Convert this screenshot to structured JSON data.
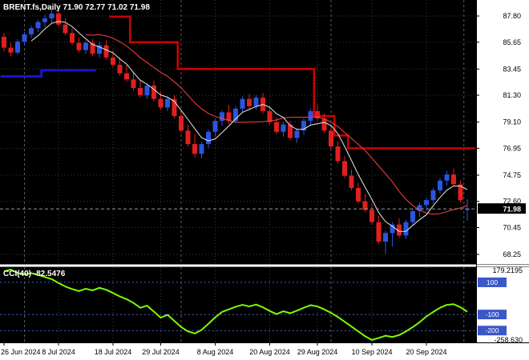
{
  "window": {
    "symbol_title": "BRENT.fs,Daily 71.90 72.77 71.02 71.98",
    "indicator_label": "CCI(40) -82.5476"
  },
  "chart_data": [
    {
      "type": "candlestick",
      "title": "BRENT.fs,Daily",
      "open": 71.9,
      "high": 72.77,
      "low": 71.02,
      "close": 71.98,
      "current_price": "71.98",
      "price_ticks": [
        "87.80",
        "85.65",
        "83.45",
        "81.30",
        "79.10",
        "76.95",
        "74.75",
        "72.60",
        "70.45",
        "68.25"
      ],
      "x_labels": [
        {
          "label": "26 Jun 2024",
          "idx": 0
        },
        {
          "label": "8 Jul 2024",
          "idx": 8
        },
        {
          "label": "18 Jul 2024",
          "idx": 16
        },
        {
          "label": "29 Jul 2024",
          "idx": 23
        },
        {
          "label": "8 Aug 2024",
          "idx": 31
        },
        {
          "label": "20 Aug 2024",
          "idx": 39
        },
        {
          "label": "29 Aug 2024",
          "idx": 46
        },
        {
          "label": "10 Sep 2024",
          "idx": 54
        },
        {
          "label": "20 Sep 2024",
          "idx": 62
        }
      ],
      "month_separators": [
        3,
        26,
        48,
        67.5
      ],
      "ma_fast_period": 5,
      "ma_slow_period": 13,
      "support_steps": [
        [
          -0.5,
          82.85
        ],
        [
          5.5,
          82.85
        ],
        [
          5.5,
          83.35
        ],
        [
          13.5,
          83.35
        ]
      ],
      "resistance_steps": [
        [
          15.5,
          87.75
        ],
        [
          18.5,
          87.75
        ],
        [
          18.5,
          85.65
        ],
        [
          25.5,
          85.65
        ],
        [
          25.5,
          83.45
        ],
        [
          45.5,
          83.45
        ],
        [
          45.5,
          79.6
        ],
        [
          48.5,
          79.6
        ],
        [
          48.5,
          78.0
        ],
        [
          50.5,
          78.0
        ],
        [
          50.5,
          76.95
        ],
        [
          69.2,
          76.95
        ]
      ],
      "candles": [
        [
          86.1,
          86.4,
          84.9,
          85.2
        ],
        [
          85.2,
          85.6,
          84.5,
          84.8
        ],
        [
          84.8,
          85.9,
          84.6,
          85.7
        ],
        [
          85.7,
          86.5,
          85.4,
          86.3
        ],
        [
          86.3,
          87.0,
          86.0,
          86.8
        ],
        [
          86.8,
          87.5,
          86.5,
          87.3
        ],
        [
          87.3,
          87.9,
          86.9,
          87.6
        ],
        [
          87.6,
          88.3,
          87.2,
          88.0
        ],
        [
          88.0,
          88.4,
          86.9,
          87.1
        ],
        [
          87.1,
          87.6,
          86.2,
          86.4
        ],
        [
          86.4,
          86.8,
          85.4,
          85.6
        ],
        [
          85.6,
          86.0,
          84.8,
          85.0
        ],
        [
          85.0,
          85.8,
          84.7,
          85.6
        ],
        [
          85.6,
          85.9,
          84.5,
          84.7
        ],
        [
          84.7,
          85.7,
          84.4,
          85.4
        ],
        [
          85.4,
          85.8,
          84.2,
          84.4
        ],
        [
          84.4,
          85.0,
          83.6,
          83.8
        ],
        [
          83.8,
          84.4,
          82.9,
          83.1
        ],
        [
          83.1,
          83.8,
          82.4,
          82.6
        ],
        [
          82.6,
          83.2,
          81.7,
          81.9
        ],
        [
          81.9,
          82.5,
          81.1,
          81.3
        ],
        [
          81.3,
          82.3,
          81.0,
          82.1
        ],
        [
          82.1,
          82.5,
          80.8,
          81.0
        ],
        [
          81.0,
          81.6,
          80.1,
          80.3
        ],
        [
          80.3,
          81.2,
          80.0,
          81.0
        ],
        [
          81.0,
          81.3,
          79.4,
          79.6
        ],
        [
          79.6,
          80.1,
          78.2,
          78.4
        ],
        [
          78.4,
          78.9,
          77.1,
          77.3
        ],
        [
          77.3,
          78.1,
          76.2,
          76.5
        ],
        [
          76.5,
          77.5,
          76.1,
          77.3
        ],
        [
          77.3,
          78.5,
          77.0,
          78.3
        ],
        [
          78.3,
          79.4,
          77.9,
          79.2
        ],
        [
          79.2,
          80.1,
          78.8,
          79.9
        ],
        [
          79.9,
          80.5,
          78.9,
          79.2
        ],
        [
          79.2,
          80.4,
          79.0,
          80.2
        ],
        [
          80.2,
          81.2,
          79.9,
          81.0
        ],
        [
          81.0,
          81.4,
          80.2,
          80.4
        ],
        [
          80.4,
          81.3,
          80.1,
          81.1
        ],
        [
          81.1,
          81.5,
          79.8,
          80.0
        ],
        [
          80.0,
          80.4,
          78.9,
          79.1
        ],
        [
          79.1,
          79.5,
          78.1,
          78.3
        ],
        [
          78.3,
          79.1,
          77.9,
          78.9
        ],
        [
          78.9,
          79.2,
          77.6,
          77.8
        ],
        [
          77.8,
          78.6,
          77.4,
          78.4
        ],
        [
          78.4,
          79.4,
          78.1,
          79.2
        ],
        [
          79.2,
          80.2,
          78.9,
          80.0
        ],
        [
          80.0,
          80.6,
          79.2,
          79.4
        ],
        [
          79.4,
          79.8,
          78.2,
          78.4
        ],
        [
          78.4,
          78.7,
          76.9,
          77.1
        ],
        [
          77.1,
          77.5,
          75.7,
          75.9
        ],
        [
          75.9,
          76.3,
          74.5,
          74.7
        ],
        [
          74.7,
          75.2,
          73.5,
          73.7
        ],
        [
          73.7,
          74.1,
          72.4,
          72.6
        ],
        [
          72.6,
          73.2,
          71.7,
          71.9
        ],
        [
          71.9,
          72.4,
          70.7,
          70.9
        ],
        [
          70.9,
          71.4,
          69.1,
          69.3
        ],
        [
          69.3,
          70.2,
          68.3,
          70.0
        ],
        [
          70.0,
          70.9,
          68.9,
          70.7
        ],
        [
          70.7,
          71.2,
          69.6,
          69.8
        ],
        [
          69.8,
          71.1,
          69.5,
          70.9
        ],
        [
          70.9,
          72.0,
          70.6,
          71.8
        ],
        [
          71.8,
          72.5,
          71.3,
          72.3
        ],
        [
          72.3,
          72.9,
          71.8,
          72.7
        ],
        [
          72.7,
          73.7,
          72.4,
          73.5
        ],
        [
          73.5,
          74.5,
          73.2,
          74.3
        ],
        [
          74.3,
          75.1,
          73.9,
          74.8
        ],
        [
          74.8,
          75.3,
          73.8,
          74.0
        ],
        [
          74.0,
          74.3,
          72.5,
          72.7
        ],
        [
          71.9,
          72.77,
          71.02,
          71.98
        ]
      ],
      "colors": {
        "up": "#2b55e0",
        "down": "#e02020",
        "ma_fast": "#e8e8e8",
        "ma_slow": "#ff4040",
        "resistance": "#cc0000",
        "support": "#1515cc",
        "cci_line": "#7cfc00",
        "level_blue": "#3a57c8",
        "badge_bg": "#000000",
        "badge_text": "#ffffff"
      }
    },
    {
      "type": "line",
      "name": "CCI(40)",
      "current_value": "-82.5476",
      "max_label": "179.2195",
      "min_label": "-258.630",
      "levels": [
        "100",
        "-100",
        "-200"
      ],
      "values": [
        168,
        179.2195,
        158,
        150,
        157,
        146,
        133,
        120,
        96,
        74,
        58,
        46,
        60,
        50,
        66,
        54,
        34,
        12,
        -5,
        -28,
        -58,
        -45,
        -82,
        -120,
        -102,
        -140,
        -178,
        -205,
        -218,
        -196,
        -158,
        -118,
        -84,
        -68,
        -52,
        -40,
        -50,
        -38,
        -55,
        -78,
        -98,
        -80,
        -92,
        -76,
        -58,
        -42,
        -50,
        -68,
        -90,
        -115,
        -145,
        -175,
        -205,
        -235,
        -258.63,
        -246,
        -232,
        -240,
        -228,
        -205,
        -178,
        -148,
        -112,
        -84,
        -58,
        -40,
        -36,
        -55,
        -82.5476
      ]
    }
  ]
}
